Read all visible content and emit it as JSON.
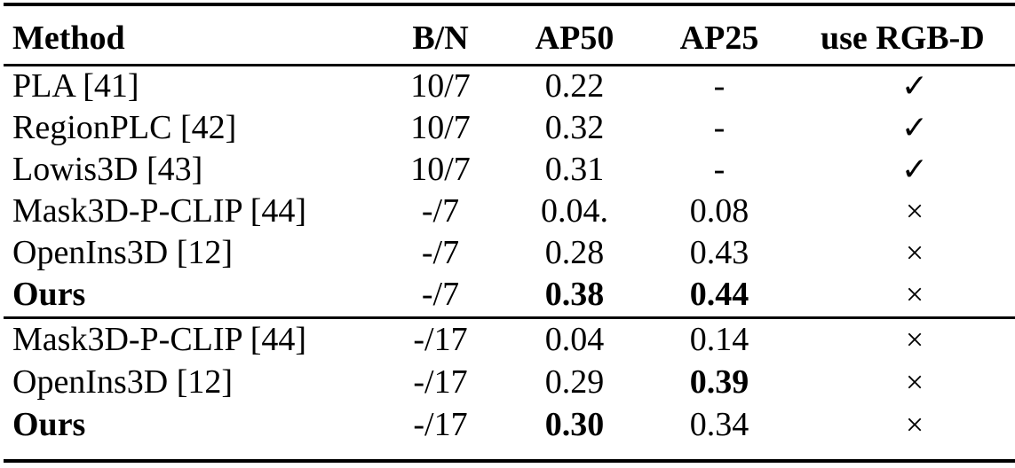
{
  "table": {
    "headers": {
      "method": "Method",
      "bn": "B/N",
      "ap50": "AP50",
      "ap25": "AP25",
      "rgbd": "use RGB-D"
    },
    "rows": [
      {
        "method": "PLA [41]",
        "bn": "10/7",
        "ap50": "0.22",
        "ap25": "-",
        "rgbd": "✓"
      },
      {
        "method": "RegionPLC [42]",
        "bn": "10/7",
        "ap50": "0.32",
        "ap25": "-",
        "rgbd": "✓"
      },
      {
        "method": "Lowis3D [43]",
        "bn": "10/7",
        "ap50": "0.31",
        "ap25": "-",
        "rgbd": "✓"
      },
      {
        "method": "Mask3D-P-CLIP [44]",
        "bn": "-/7",
        "ap50": "0.04.",
        "ap25": "0.08",
        "rgbd": "×"
      },
      {
        "method": "OpenIns3D [12]",
        "bn": "-/7",
        "ap50": "0.28",
        "ap25": "0.43",
        "rgbd": "×"
      },
      {
        "method": "Ours",
        "bn": "-/7",
        "ap50": "0.38",
        "ap25": "0.44",
        "rgbd": "×"
      },
      {
        "method": "Mask3D-P-CLIP [44]",
        "bn": "-/17",
        "ap50": "0.04",
        "ap25": "0.14",
        "rgbd": "×"
      },
      {
        "method": "OpenIns3D [12]",
        "bn": "-/17",
        "ap50": "0.29",
        "ap25": "0.39",
        "rgbd": "×"
      },
      {
        "method": "Ours",
        "bn": "-/17",
        "ap50": "0.30",
        "ap25": "0.34",
        "rgbd": "×"
      }
    ]
  }
}
